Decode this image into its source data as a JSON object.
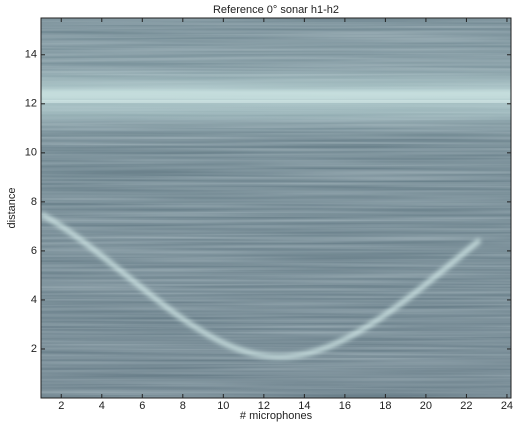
{
  "chart_data": {
    "type": "image",
    "title": "Reference 0° sonar h1-h2",
    "xlabel": "# microphones",
    "ylabel": "distance",
    "xlim": [
      1,
      24.2
    ],
    "ylim": [
      0,
      15.5
    ],
    "xticks": [
      2,
      4,
      6,
      8,
      10,
      12,
      14,
      16,
      18,
      20,
      22,
      24
    ],
    "yticks": [
      2,
      4,
      6,
      8,
      10,
      12,
      14
    ]
  }
}
